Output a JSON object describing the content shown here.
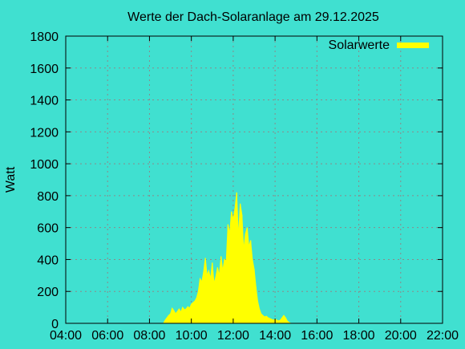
{
  "chart_data": {
    "type": "area",
    "title": "Werte der Dach-Solaranlage am 29.12.2025",
    "ylabel": "Watt",
    "xlabel": "",
    "xlim": [
      "04:00",
      "22:00"
    ],
    "ylim": [
      0,
      1800
    ],
    "xticks": [
      "04:00",
      "06:00",
      "08:00",
      "10:00",
      "12:00",
      "14:00",
      "16:00",
      "18:00",
      "20:00",
      "22:00"
    ],
    "yticks": [
      "0",
      "200",
      "400",
      "600",
      "800",
      "1000",
      "1200",
      "1400",
      "1600",
      "1800"
    ],
    "grid": true,
    "legend": "top-right",
    "series": [
      {
        "name": "Solarwerte",
        "color": "#ffff00",
        "points": [
          [
            "08:40",
            0
          ],
          [
            "08:45",
            20
          ],
          [
            "08:50",
            35
          ],
          [
            "08:55",
            50
          ],
          [
            "09:00",
            60
          ],
          [
            "09:05",
            95
          ],
          [
            "09:10",
            80
          ],
          [
            "09:15",
            60
          ],
          [
            "09:20",
            75
          ],
          [
            "09:25",
            90
          ],
          [
            "09:30",
            70
          ],
          [
            "09:35",
            100
          ],
          [
            "09:40",
            85
          ],
          [
            "09:45",
            90
          ],
          [
            "09:50",
            105
          ],
          [
            "09:55",
            95
          ],
          [
            "10:00",
            120
          ],
          [
            "10:05",
            130
          ],
          [
            "10:10",
            140
          ],
          [
            "10:15",
            160
          ],
          [
            "10:20",
            200
          ],
          [
            "10:25",
            280
          ],
          [
            "10:30",
            260
          ],
          [
            "10:35",
            320
          ],
          [
            "10:40",
            410
          ],
          [
            "10:45",
            300
          ],
          [
            "10:50",
            330
          ],
          [
            "10:55",
            280
          ],
          [
            "11:00",
            380
          ],
          [
            "11:05",
            250
          ],
          [
            "11:10",
            290
          ],
          [
            "11:15",
            350
          ],
          [
            "11:20",
            300
          ],
          [
            "11:25",
            420
          ],
          [
            "11:30",
            330
          ],
          [
            "11:35",
            400
          ],
          [
            "11:40",
            390
          ],
          [
            "11:45",
            620
          ],
          [
            "11:50",
            560
          ],
          [
            "11:55",
            700
          ],
          [
            "12:00",
            650
          ],
          [
            "12:05",
            720
          ],
          [
            "12:10",
            820
          ],
          [
            "12:15",
            540
          ],
          [
            "12:20",
            750
          ],
          [
            "12:25",
            680
          ],
          [
            "12:30",
            460
          ],
          [
            "12:35",
            560
          ],
          [
            "12:40",
            600
          ],
          [
            "12:45",
            480
          ],
          [
            "12:50",
            520
          ],
          [
            "12:55",
            400
          ],
          [
            "13:00",
            340
          ],
          [
            "13:05",
            230
          ],
          [
            "13:10",
            140
          ],
          [
            "13:15",
            90
          ],
          [
            "13:20",
            60
          ],
          [
            "13:25",
            50
          ],
          [
            "13:30",
            40
          ],
          [
            "13:35",
            45
          ],
          [
            "13:40",
            35
          ],
          [
            "13:45",
            30
          ],
          [
            "13:50",
            25
          ],
          [
            "13:55",
            20
          ],
          [
            "14:00",
            25
          ],
          [
            "14:05",
            20
          ],
          [
            "14:10",
            15
          ],
          [
            "14:15",
            20
          ],
          [
            "14:20",
            35
          ],
          [
            "14:25",
            50
          ],
          [
            "14:30",
            35
          ],
          [
            "14:35",
            15
          ],
          [
            "14:40",
            5
          ],
          [
            "14:45",
            0
          ]
        ]
      }
    ]
  }
}
